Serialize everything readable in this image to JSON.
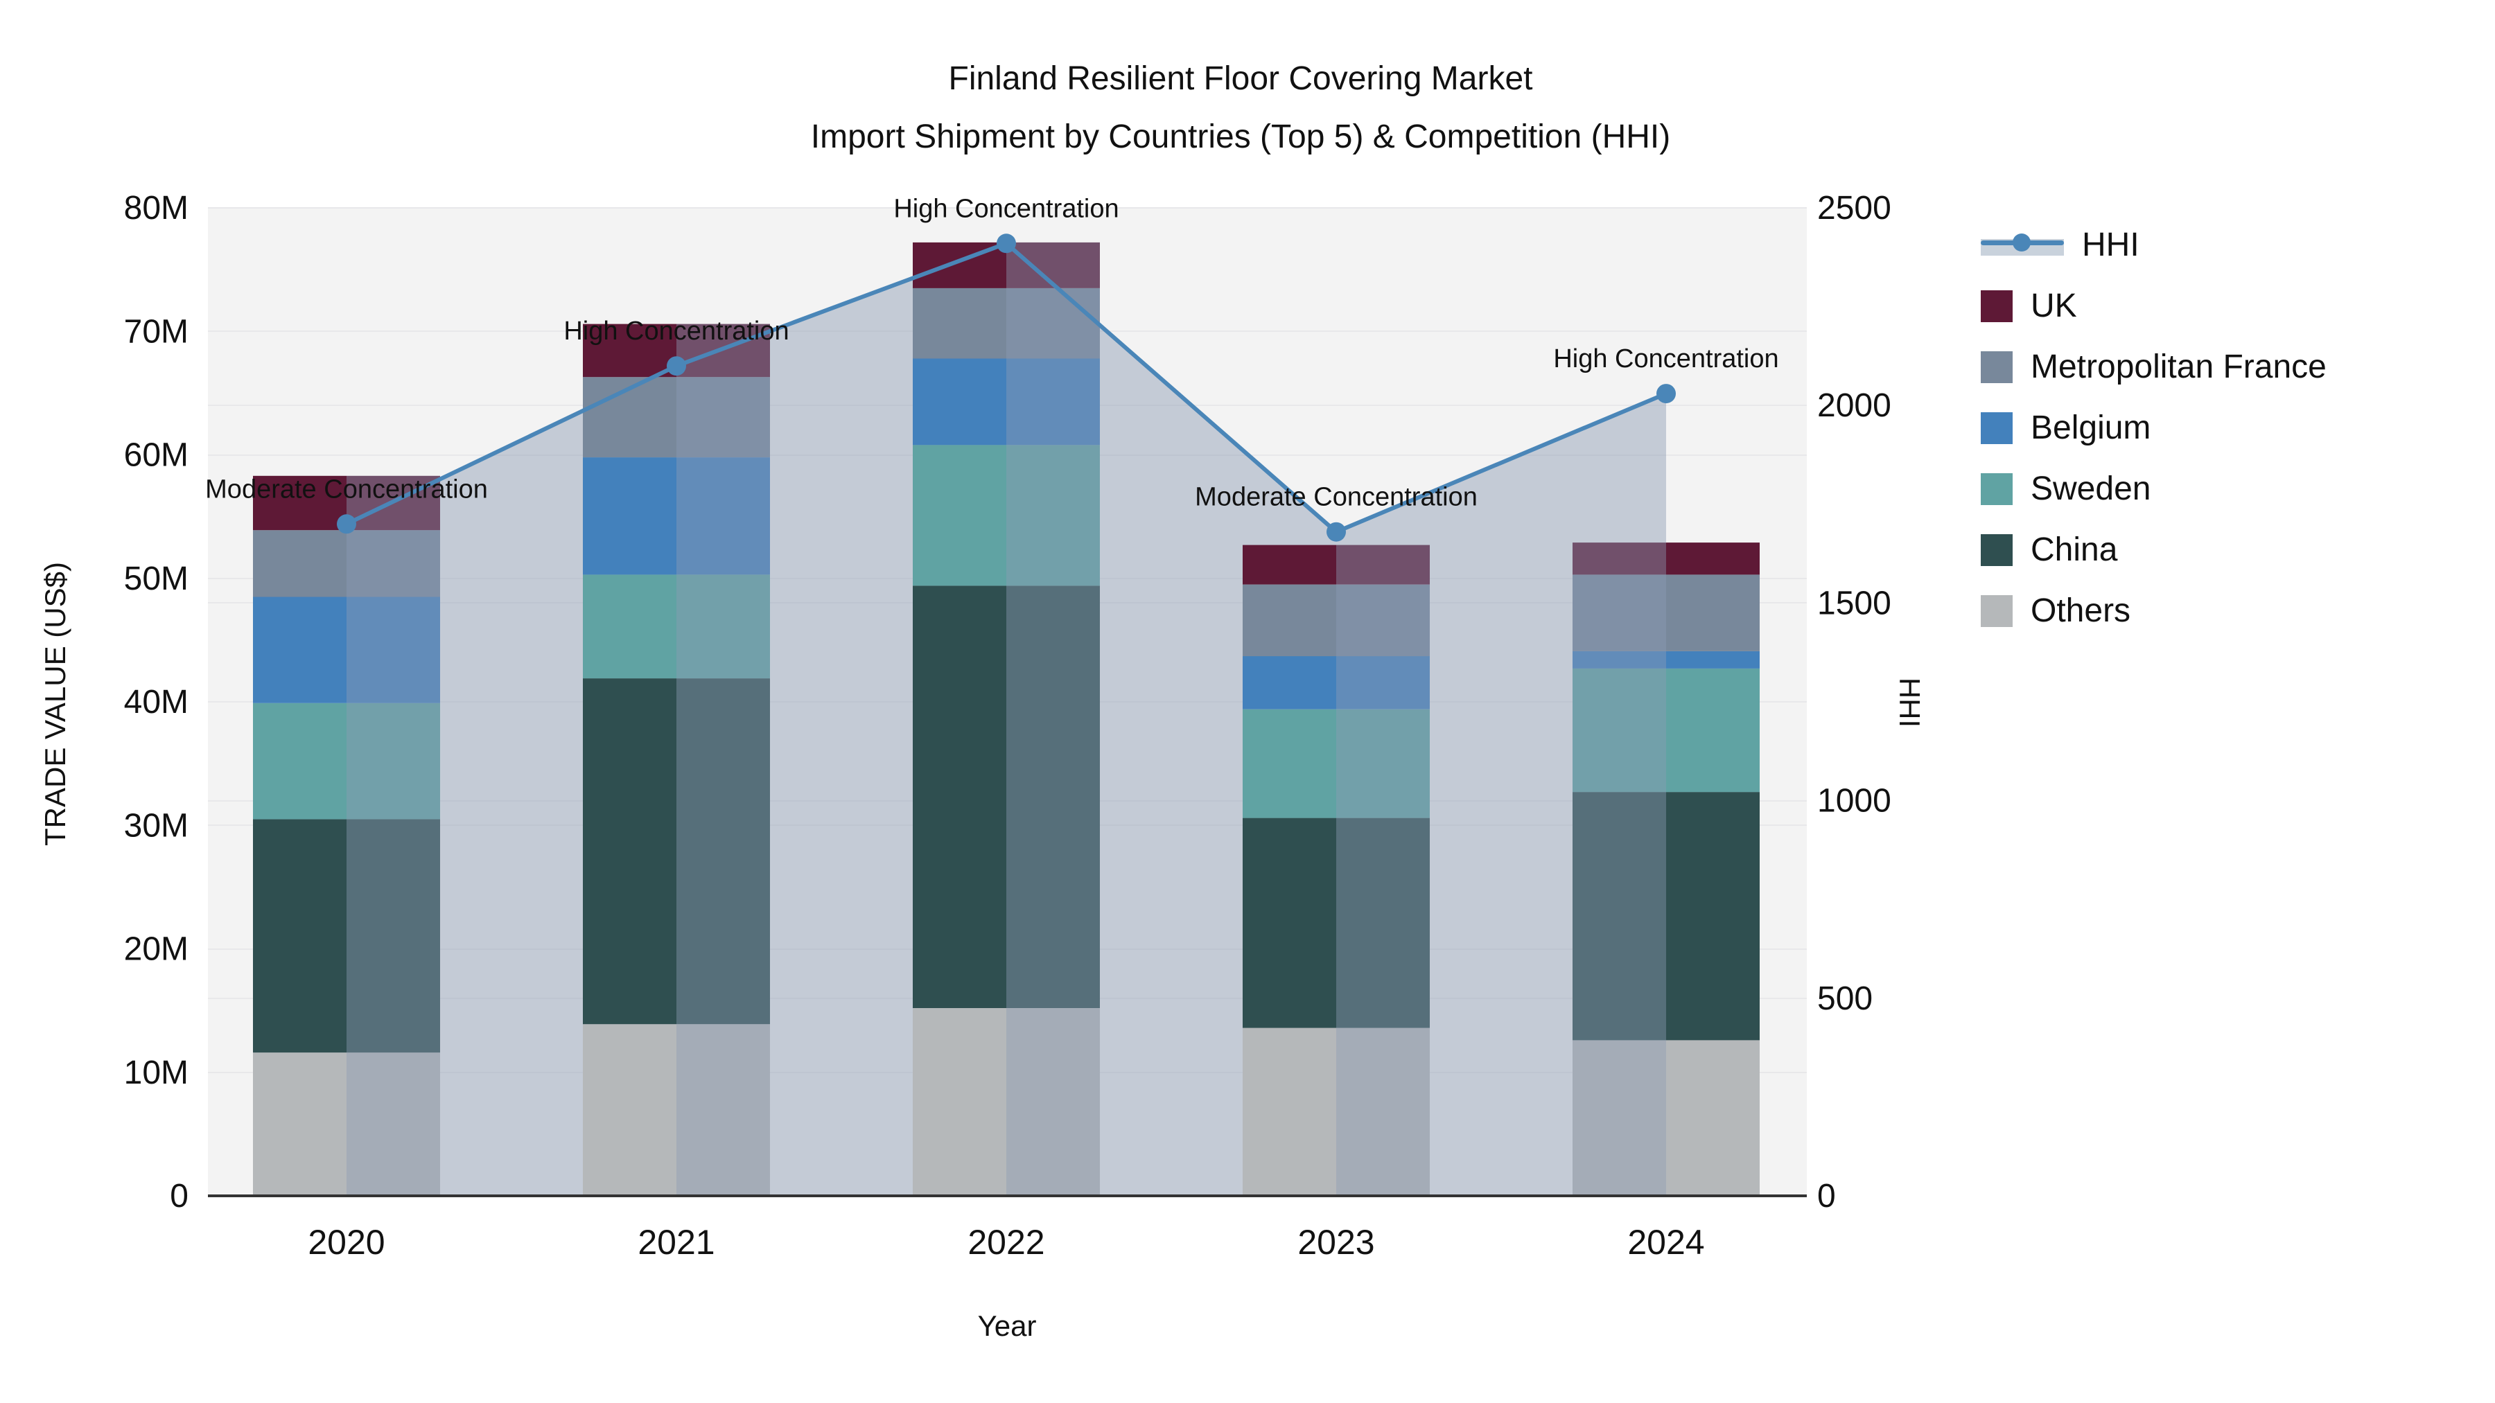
{
  "title": {
    "line1": "Finland Resilient Floor Covering Market",
    "line2": "Import Shipment by Countries (Top 5) & Competition (HHI)"
  },
  "axes": {
    "x": {
      "label": "Year",
      "tick_labels": [
        "2020",
        "2021",
        "2022",
        "2023",
        "2024"
      ]
    },
    "y_left": {
      "label": "TRADE VALUE (US$)",
      "tick_labels": [
        "0",
        "10M",
        "20M",
        "30M",
        "40M",
        "50M",
        "60M",
        "70M",
        "80M"
      ],
      "range": [
        0,
        80
      ]
    },
    "y_right": {
      "label": "HHI",
      "tick_labels": [
        "0",
        "500",
        "1000",
        "1500",
        "2000",
        "2500"
      ],
      "range": [
        0,
        2500
      ]
    }
  },
  "legend": {
    "items": [
      {
        "label": "HHI",
        "kind": "line",
        "color": "#4A86B8"
      },
      {
        "label": "UK",
        "kind": "swatch",
        "color": "#5E1936"
      },
      {
        "label": "Metropolitan France",
        "kind": "swatch",
        "color": "#78889B"
      },
      {
        "label": "Belgium",
        "kind": "swatch",
        "color": "#4381BC"
      },
      {
        "label": "Sweden",
        "kind": "swatch",
        "color": "#60A3A3"
      },
      {
        "label": "China",
        "kind": "swatch",
        "color": "#2F4F50"
      },
      {
        "label": "Others",
        "kind": "swatch",
        "color": "#B5B8BA"
      }
    ]
  },
  "colors": {
    "plot_background": "#F3F3F3",
    "gridline": "#E8E8EA",
    "axis_line": "#333333",
    "hhi_line": "#4A86B8",
    "hhi_area_base": "140,155,180",
    "hhi_area_alpha": 0.45,
    "text": "#111111"
  },
  "chart_data": {
    "type": "bar+line",
    "title": "Finland Resilient Floor Covering Market — Import Shipment by Countries (Top 5) & Competition (HHI)",
    "categories": [
      "2020",
      "2021",
      "2022",
      "2023",
      "2024"
    ],
    "stack_order_note": "series listed bottom-to-top of the stacked bars, values in million US$",
    "series": [
      {
        "name": "Others",
        "color": "#B5B8BA",
        "values": [
          11.6,
          13.9,
          15.2,
          13.6,
          12.6
        ]
      },
      {
        "name": "China",
        "color": "#2F4F50",
        "values": [
          18.9,
          28.0,
          34.2,
          17.0,
          20.1
        ]
      },
      {
        "name": "Sweden",
        "color": "#60A3A3",
        "values": [
          9.4,
          8.4,
          11.4,
          8.8,
          10.0
        ]
      },
      {
        "name": "Belgium",
        "color": "#4381BC",
        "values": [
          8.6,
          9.5,
          7.0,
          4.3,
          1.4
        ]
      },
      {
        "name": "Metropolitan France",
        "color": "#78889B",
        "values": [
          5.4,
          6.5,
          5.7,
          5.8,
          6.2
        ]
      },
      {
        "name": "UK",
        "color": "#5E1936",
        "values": [
          4.4,
          4.3,
          3.7,
          3.2,
          2.6
        ]
      }
    ],
    "bar_totals": [
      58.3,
      70.6,
      77.2,
      52.7,
      52.9
    ],
    "hhi": {
      "name": "HHI",
      "values": [
        1700,
        2100,
        2410,
        1680,
        2030
      ]
    },
    "annotations": [
      "Moderate Concentration",
      "High Concentration",
      "High Concentration",
      "Moderate Concentration",
      "High Concentration"
    ],
    "xlabel": "Year",
    "ylabel_left": "TRADE VALUE (US$)",
    "ylabel_right": "HHI",
    "ylim_left": [
      0,
      80
    ],
    "ylim_right": [
      0,
      2500
    ],
    "grid": true,
    "legend_position": "right"
  }
}
